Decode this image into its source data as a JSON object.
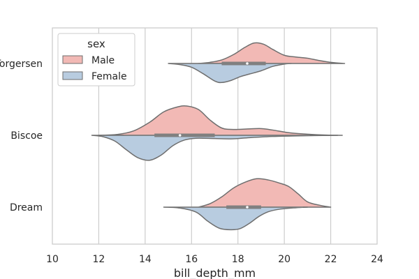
{
  "chart_data": {
    "type": "violin",
    "split": true,
    "orientation": "horizontal",
    "xlabel": "bill_depth_mm",
    "ylabel": "",
    "xlim": [
      10,
      24
    ],
    "xticks": [
      10,
      12,
      14,
      16,
      18,
      20,
      22,
      24
    ],
    "categories": [
      "Torgersen",
      "Biscoe",
      "Dream"
    ],
    "grid": "vertical",
    "legend": {
      "title": "sex",
      "placement": "top-left",
      "entries": [
        "Male",
        "Female"
      ]
    },
    "colors": {
      "Male": "#f2b9b5",
      "Female": "#b8cce0",
      "outline": "#6e6e6e",
      "box": "#808080",
      "grid": "#cccccc",
      "frame": "#cccccc"
    },
    "series": [
      {
        "name": "Male",
        "violins": [
          {
            "category": "Torgersen",
            "x_range": [
              16.3,
              22.6
            ],
            "density": [
              [
                16.3,
                0
              ],
              [
                16.8,
                0.04
              ],
              [
                17.3,
                0.12
              ],
              [
                17.8,
                0.3
              ],
              [
                18.3,
                0.55
              ],
              [
                18.7,
                0.7
              ],
              [
                19.1,
                0.66
              ],
              [
                19.5,
                0.48
              ],
              [
                20.0,
                0.28
              ],
              [
                20.5,
                0.22
              ],
              [
                21.0,
                0.18
              ],
              [
                21.5,
                0.1
              ],
              [
                22.0,
                0.04
              ],
              [
                22.6,
                0
              ]
            ]
          },
          {
            "category": "Biscoe",
            "x_range": [
              12.0,
              22.5
            ],
            "density": [
              [
                12.0,
                0
              ],
              [
                12.8,
                0.03
              ],
              [
                13.5,
                0.15
              ],
              [
                14.2,
                0.45
              ],
              [
                14.8,
                0.8
              ],
              [
                15.4,
                0.97
              ],
              [
                15.8,
                1.0
              ],
              [
                16.3,
                0.88
              ],
              [
                16.8,
                0.52
              ],
              [
                17.3,
                0.25
              ],
              [
                17.8,
                0.2
              ],
              [
                18.5,
                0.22
              ],
              [
                19.0,
                0.23
              ],
              [
                19.5,
                0.18
              ],
              [
                20.2,
                0.09
              ],
              [
                21.0,
                0.04
              ],
              [
                21.8,
                0.01
              ],
              [
                22.5,
                0
              ]
            ]
          },
          {
            "category": "Dream",
            "x_range": [
              16.3,
              22.0
            ],
            "density": [
              [
                16.3,
                0
              ],
              [
                16.8,
                0.12
              ],
              [
                17.3,
                0.35
              ],
              [
                17.8,
                0.65
              ],
              [
                18.3,
                0.85
              ],
              [
                18.8,
                0.97
              ],
              [
                19.3,
                0.93
              ],
              [
                19.8,
                0.82
              ],
              [
                20.2,
                0.7
              ],
              [
                20.6,
                0.45
              ],
              [
                21.0,
                0.18
              ],
              [
                21.5,
                0.07
              ],
              [
                22.0,
                0
              ]
            ]
          }
        ]
      },
      {
        "name": "Female",
        "violins": [
          {
            "category": "Torgersen",
            "x_range": [
              15.0,
              20.3
            ],
            "density": [
              [
                15.0,
                0
              ],
              [
                15.5,
                0.04
              ],
              [
                16.0,
                0.13
              ],
              [
                16.5,
                0.35
              ],
              [
                17.0,
                0.6
              ],
              [
                17.3,
                0.65
              ],
              [
                17.7,
                0.58
              ],
              [
                18.1,
                0.45
              ],
              [
                18.5,
                0.36
              ],
              [
                19.0,
                0.25
              ],
              [
                19.5,
                0.1
              ],
              [
                20.0,
                0.02
              ],
              [
                20.3,
                0
              ]
            ]
          },
          {
            "category": "Biscoe",
            "x_range": [
              11.7,
              22.3
            ],
            "density": [
              [
                11.7,
                0
              ],
              [
                12.2,
                0.05
              ],
              [
                12.7,
                0.2
              ],
              [
                13.2,
                0.5
              ],
              [
                13.7,
                0.77
              ],
              [
                14.2,
                0.85
              ],
              [
                14.7,
                0.67
              ],
              [
                15.2,
                0.35
              ],
              [
                15.7,
                0.16
              ],
              [
                16.2,
                0.1
              ],
              [
                17.0,
                0.11
              ],
              [
                17.8,
                0.12
              ],
              [
                18.5,
                0.08
              ],
              [
                19.5,
                0.04
              ],
              [
                20.5,
                0.02
              ],
              [
                22.3,
                0
              ]
            ]
          },
          {
            "category": "Dream",
            "x_range": [
              14.8,
              21.0
            ],
            "density": [
              [
                14.8,
                0
              ],
              [
                15.5,
                0.03
              ],
              [
                16.2,
                0.17
              ],
              [
                16.7,
                0.48
              ],
              [
                17.2,
                0.72
              ],
              [
                17.7,
                0.77
              ],
              [
                18.1,
                0.73
              ],
              [
                18.5,
                0.55
              ],
              [
                18.9,
                0.32
              ],
              [
                19.3,
                0.16
              ],
              [
                19.8,
                0.07
              ],
              [
                20.5,
                0.02
              ],
              [
                21.0,
                0
              ]
            ]
          }
        ]
      }
    ],
    "boxes": [
      {
        "category": "Torgersen",
        "q1": 17.3,
        "median": 18.4,
        "q3": 19.2,
        "whisker_low": 15.2,
        "whisker_high": 21.5
      },
      {
        "category": "Biscoe",
        "q1": 14.4,
        "median": 15.5,
        "q3": 17.0,
        "whisker_low": 13.1,
        "whisker_high": 21.1
      },
      {
        "category": "Dream",
        "q1": 17.5,
        "median": 18.4,
        "q3": 19.0,
        "whisker_low": 15.5,
        "whisker_high": 20.8
      }
    ]
  }
}
